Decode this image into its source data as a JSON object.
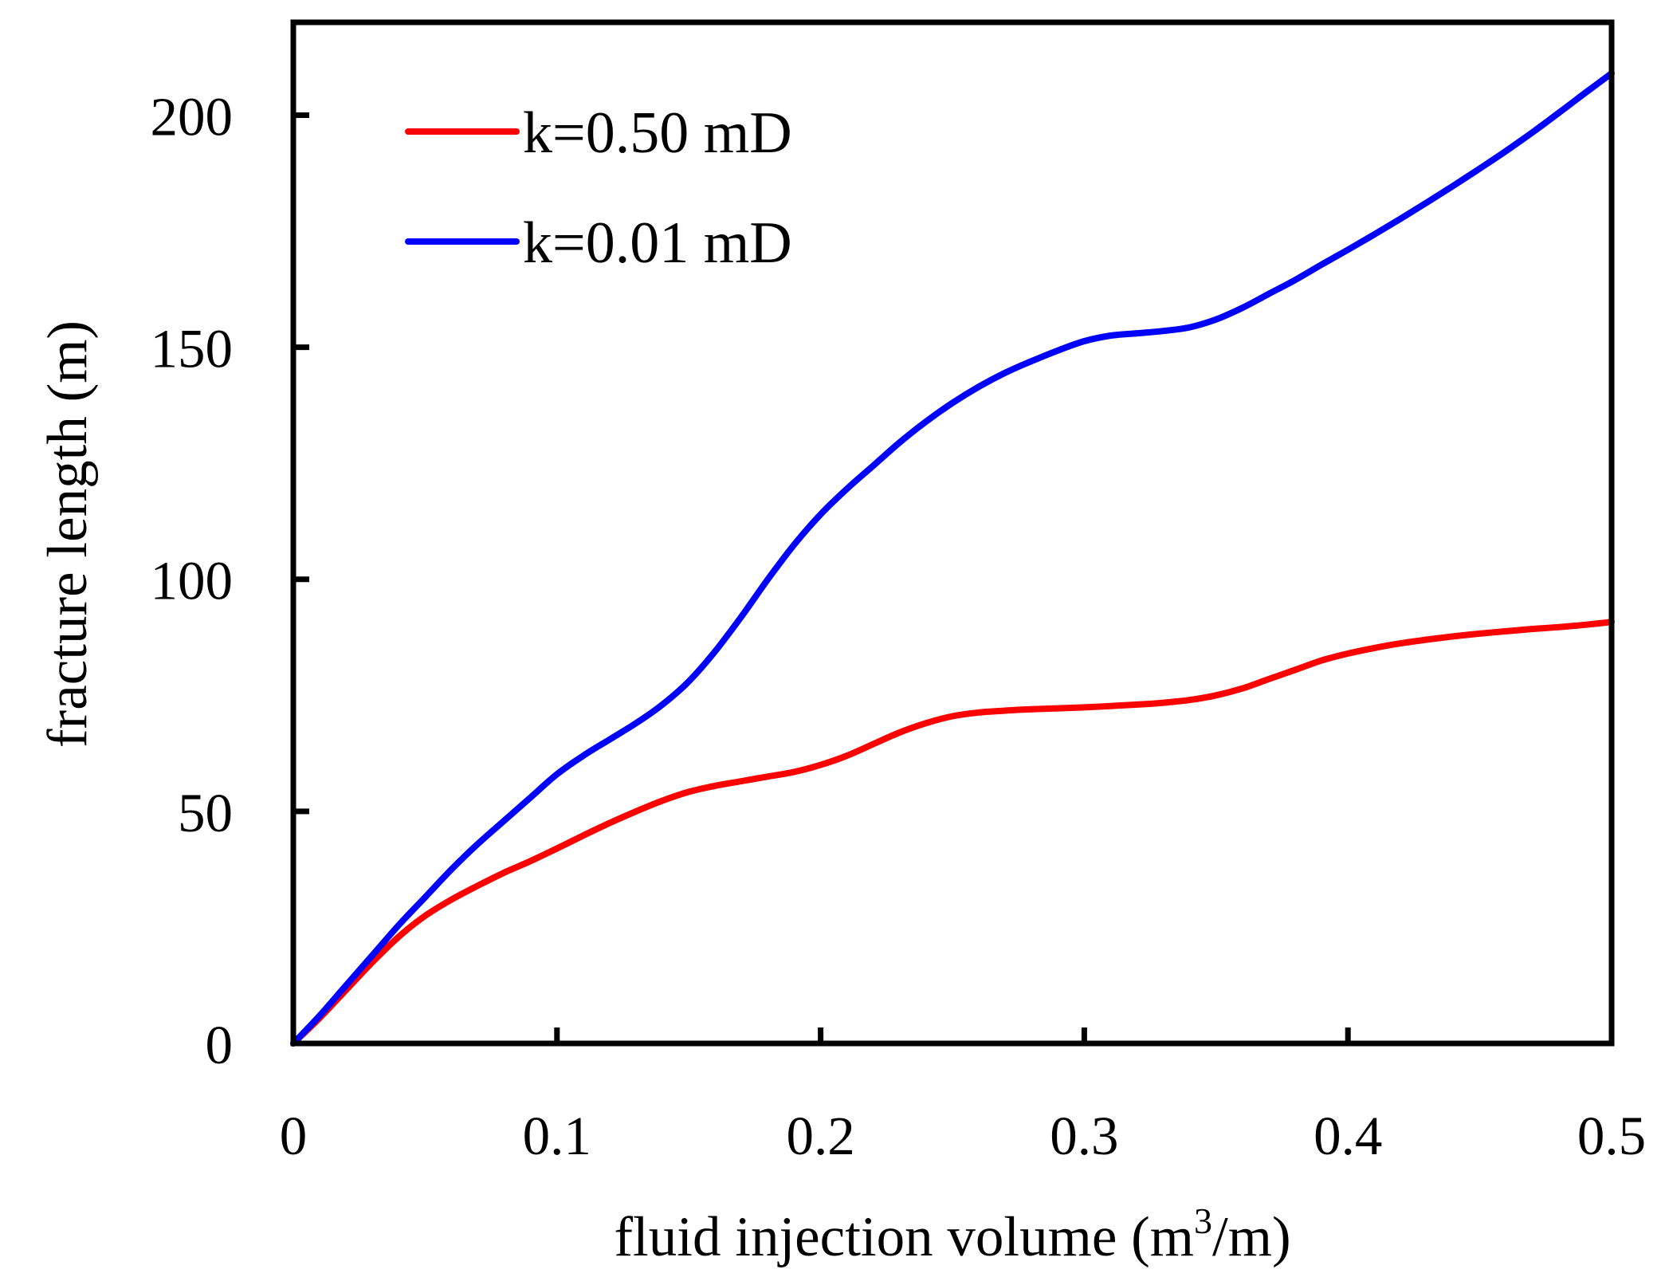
{
  "chart_data": {
    "type": "line",
    "title": "",
    "xlabel": "fluid injection volume (m",
    "xlabel_superscript": "3",
    "xlabel_suffix": "/m)",
    "ylabel": "fracture length (m)",
    "xlim": [
      0,
      0.5
    ],
    "ylim": [
      0,
      220
    ],
    "xticks": [
      0,
      0.1,
      0.2,
      0.3,
      0.4,
      0.5
    ],
    "xtick_labels": [
      "0",
      "0.1",
      "0.2",
      "0.3",
      "0.4",
      "0.5"
    ],
    "yticks": [
      0,
      50,
      100,
      150,
      200
    ],
    "ytick_labels": [
      "0",
      "50",
      "100",
      "150",
      "200"
    ],
    "grid": false,
    "legend_position": "top-left",
    "series": [
      {
        "name": "k=0.50 mD",
        "color": "#ff0000",
        "x": [
          0,
          0.01,
          0.02,
          0.03,
          0.04,
          0.05,
          0.06,
          0.07,
          0.08,
          0.09,
          0.1,
          0.11,
          0.12,
          0.13,
          0.14,
          0.15,
          0.16,
          0.17,
          0.18,
          0.19,
          0.2,
          0.21,
          0.22,
          0.23,
          0.24,
          0.25,
          0.26,
          0.27,
          0.28,
          0.29,
          0.3,
          0.31,
          0.32,
          0.33,
          0.34,
          0.35,
          0.36,
          0.37,
          0.38,
          0.39,
          0.4,
          0.41,
          0.42,
          0.43,
          0.44,
          0.45,
          0.46,
          0.47,
          0.48,
          0.49,
          0.5
        ],
        "y": [
          0,
          5.5,
          11.5,
          17.5,
          23,
          27.5,
          31,
          34,
          36.8,
          39.3,
          42,
          44.8,
          47.5,
          50,
          52.3,
          54.2,
          55.5,
          56.5,
          57.5,
          58.5,
          60,
          62,
          64.5,
          67,
          69,
          70.5,
          71.3,
          71.7,
          72,
          72.2,
          72.4,
          72.7,
          73,
          73.4,
          74,
          75,
          76.5,
          78.5,
          80.5,
          82.5,
          84,
          85.2,
          86.2,
          87,
          87.7,
          88.3,
          88.8,
          89.3,
          89.7,
          90.2,
          90.8
        ]
      },
      {
        "name": "k=0.01 mD",
        "color": "#0000ff",
        "x": [
          0,
          0.01,
          0.02,
          0.03,
          0.04,
          0.05,
          0.06,
          0.07,
          0.08,
          0.09,
          0.1,
          0.11,
          0.12,
          0.13,
          0.14,
          0.15,
          0.16,
          0.17,
          0.18,
          0.19,
          0.2,
          0.21,
          0.22,
          0.23,
          0.24,
          0.25,
          0.26,
          0.27,
          0.28,
          0.29,
          0.3,
          0.31,
          0.32,
          0.33,
          0.34,
          0.35,
          0.36,
          0.37,
          0.38,
          0.39,
          0.4,
          0.41,
          0.42,
          0.43,
          0.44,
          0.45,
          0.46,
          0.47,
          0.48,
          0.49,
          0.5
        ],
        "y": [
          0,
          6,
          12.5,
          19,
          25.5,
          31.5,
          37.5,
          43,
          48,
          53,
          58,
          62,
          65.5,
          69,
          73,
          78,
          84.5,
          92,
          100,
          107.5,
          114,
          119.5,
          124.5,
          129.5,
          134,
          138,
          141.5,
          144.5,
          147,
          149.3,
          151.3,
          152.5,
          153,
          153.5,
          154.3,
          156,
          158.5,
          161.5,
          164.5,
          167.8,
          171,
          174.3,
          177.7,
          181.2,
          184.8,
          188.5,
          192.3,
          196.3,
          200.5,
          204.8,
          209
        ]
      }
    ]
  }
}
